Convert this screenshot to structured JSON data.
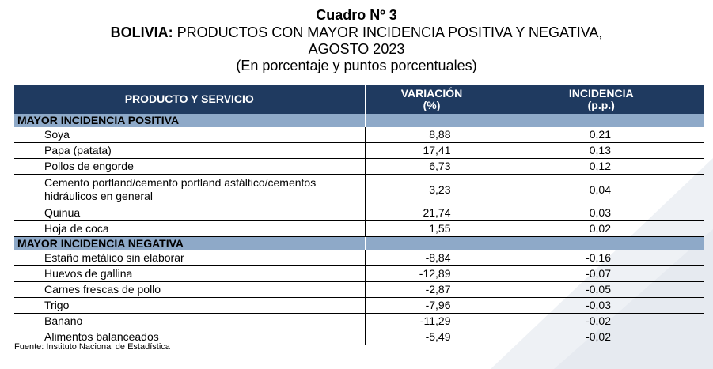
{
  "title": {
    "line1": "Cuadro Nº 3",
    "line2_bold": "BOLIVIA:",
    "line2_rest": " PRODUCTOS CON MAYOR INCIDENCIA POSITIVA Y NEGATIVA,",
    "line3": "AGOSTO 2023",
    "line4": "(En porcentaje y puntos porcentuales)"
  },
  "table": {
    "headers": {
      "product": "PRODUCTO Y SERVICIO",
      "variation_line1": "VARIACIÓN",
      "variation_line2": "(%)",
      "incidence_line1": "INCIDENCIA",
      "incidence_line2": "(p.p.)"
    },
    "positive": {
      "label": "MAYOR INCIDENCIA POSITIVA",
      "rows": [
        {
          "product": "Soya",
          "variation": "8,88",
          "incidence": "0,21"
        },
        {
          "product": "Papa (patata)",
          "variation": "17,41",
          "incidence": "0,13"
        },
        {
          "product": "Pollos de engorde",
          "variation": "6,73",
          "incidence": "0,12"
        },
        {
          "product": "Cemento portland/cemento portland asfáltico/cementos hidráulicos en general",
          "variation": "3,23",
          "incidence": "0,04"
        },
        {
          "product": "Quinua",
          "variation": "21,74",
          "incidence": "0,03"
        },
        {
          "product": "Hoja de coca",
          "variation": "1,55",
          "incidence": "0,02"
        }
      ]
    },
    "negative": {
      "label": "MAYOR INCIDENCIA NEGATIVA",
      "rows": [
        {
          "product": "Estaño metálico sin elaborar",
          "variation": "-8,84",
          "incidence": "-0,16"
        },
        {
          "product": "Huevos de gallina",
          "variation": "-12,89",
          "incidence": "-0,07"
        },
        {
          "product": "Carnes frescas de pollo",
          "variation": "-2,87",
          "incidence": "-0,05"
        },
        {
          "product": "Trigo",
          "variation": "-7,96",
          "incidence": "-0,03"
        },
        {
          "product": "Banano",
          "variation": "-11,29",
          "incidence": "-0,02"
        },
        {
          "product": "Alimentos balanceados",
          "variation": "-5,49",
          "incidence": "-0,02"
        }
      ]
    }
  },
  "source": "Fuente: Instituto Nacional de Estadística"
}
